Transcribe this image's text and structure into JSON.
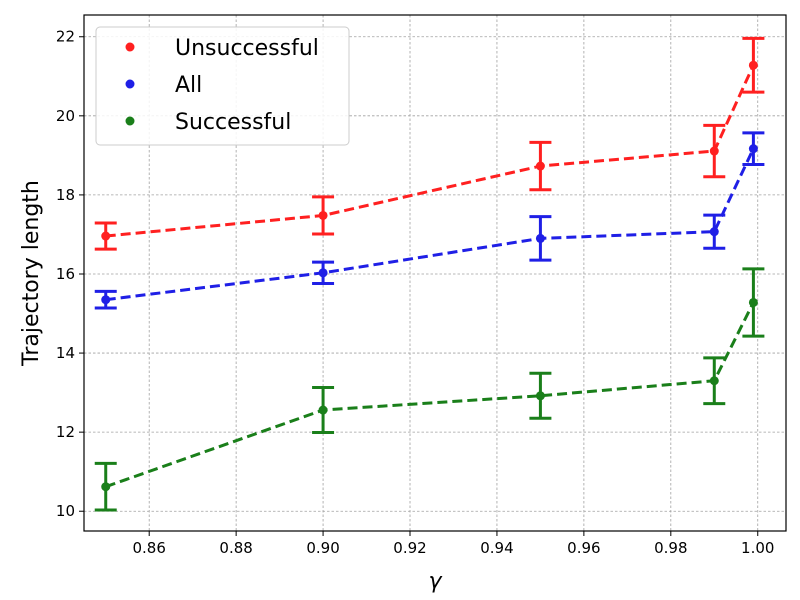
{
  "chart_data": {
    "type": "line",
    "xlabel": "γ",
    "ylabel": "Trajectory length",
    "xlim": [
      0.845,
      1.0065
    ],
    "ylim": [
      9.5,
      22.55
    ],
    "x": [
      0.85,
      0.9,
      0.95,
      0.99,
      0.999
    ],
    "x_ticks": [
      0.86,
      0.88,
      0.9,
      0.92,
      0.94,
      0.96,
      0.98,
      1.0
    ],
    "x_tick_labels": [
      "0.86",
      "0.88",
      "0.90",
      "0.92",
      "0.94",
      "0.96",
      "0.98",
      "1.00"
    ],
    "y_ticks": [
      10,
      12,
      14,
      16,
      18,
      20,
      22
    ],
    "y_tick_labels": [
      "10",
      "12",
      "14",
      "16",
      "18",
      "20",
      "22"
    ],
    "grid": true,
    "legend_position": "top-left",
    "series": [
      {
        "name": "Unsuccessful",
        "color": "#ff2020",
        "values": [
          16.96,
          17.48,
          18.73,
          19.11,
          21.28
        ],
        "errors": [
          0.33,
          0.47,
          0.6,
          0.65,
          0.68
        ]
      },
      {
        "name": "All",
        "color": "#1f1fe6",
        "values": [
          15.35,
          16.03,
          16.9,
          17.07,
          19.17
        ],
        "errors": [
          0.21,
          0.27,
          0.55,
          0.42,
          0.4
        ]
      },
      {
        "name": "Successful",
        "color": "#1a7f1a",
        "values": [
          10.62,
          12.56,
          12.92,
          13.3,
          15.28
        ],
        "errors": [
          0.59,
          0.57,
          0.57,
          0.58,
          0.85
        ]
      }
    ]
  }
}
